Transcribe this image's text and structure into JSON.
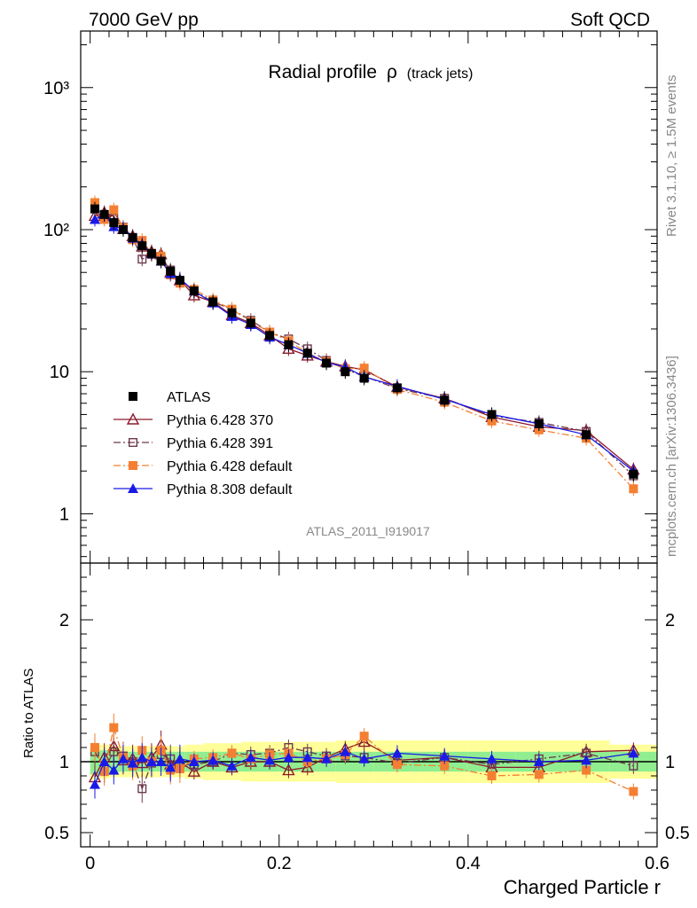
{
  "header": {
    "left": "7000 GeV pp",
    "right": "Soft QCD"
  },
  "side_text": {
    "rivet": "Rivet 3.1.10, ≥ 1.5M events",
    "mcplots": "mcplots.cern.ch [arXiv:1306.3436]"
  },
  "chart_data": [
    {
      "type": "line",
      "title": "Radial profile",
      "title_symbol": "ρ",
      "title_suffix": "(track jets)",
      "analysis_label": "ATLAS_2011_I919017",
      "y_scale": "log",
      "xlim": [
        -0.01,
        0.6
      ],
      "ylim": [
        0.45,
        2500
      ],
      "y_ticks_major": [
        "1",
        "10",
        "10²",
        "10³"
      ],
      "legend_position": "lower-left",
      "series": [
        {
          "name": "ATLAS",
          "color": "#000000",
          "marker": "square-filled",
          "x": [
            0.005,
            0.015,
            0.025,
            0.035,
            0.045,
            0.055,
            0.065,
            0.075,
            0.085,
            0.095,
            0.11,
            0.13,
            0.15,
            0.17,
            0.19,
            0.21,
            0.23,
            0.25,
            0.27,
            0.29,
            0.325,
            0.375,
            0.425,
            0.475,
            0.525,
            0.575
          ],
          "y": [
            140,
            128,
            112,
            100,
            88,
            77,
            68,
            60,
            51,
            44,
            37,
            31,
            26,
            22,
            18,
            15.5,
            13.5,
            11.5,
            10,
            9,
            7.7,
            6.3,
            5.0,
            4.3,
            3.6,
            1.9
          ]
        },
        {
          "name": "Pythia 6.428 370",
          "color": "#8b1a2b",
          "marker": "triangle-open",
          "line": "solid",
          "x": [
            0.005,
            0.015,
            0.025,
            0.035,
            0.045,
            0.055,
            0.065,
            0.075,
            0.085,
            0.095,
            0.11,
            0.13,
            0.15,
            0.17,
            0.19,
            0.21,
            0.23,
            0.25,
            0.27,
            0.29,
            0.325,
            0.375,
            0.425,
            0.475,
            0.525,
            0.575
          ],
          "y": [
            125,
            132,
            124,
            101,
            90,
            76,
            70,
            67,
            50,
            44,
            34.5,
            31,
            25,
            22,
            18,
            14.5,
            13,
            11.8,
            10.9,
            10.3,
            7.8,
            6.5,
            4.8,
            4.1,
            3.85,
            2.05
          ]
        },
        {
          "name": "Pythia 6.428 391",
          "color": "#6e3a4e",
          "marker": "square-open",
          "line": "dash-dot",
          "x": [
            0.005,
            0.015,
            0.025,
            0.035,
            0.045,
            0.055,
            0.065,
            0.075,
            0.085,
            0.095,
            0.11,
            0.13,
            0.15,
            0.17,
            0.19,
            0.21,
            0.23,
            0.25,
            0.27,
            0.29,
            0.325,
            0.375,
            0.425,
            0.475,
            0.525,
            0.575
          ],
          "y": [
            150,
            122,
            120,
            104,
            88,
            62,
            67,
            63,
            52,
            43,
            37,
            31,
            27.5,
            23,
            19,
            17,
            14.5,
            12,
            10.4,
            9.3,
            7.6,
            6.5,
            4.9,
            4.4,
            3.8,
            1.85
          ]
        },
        {
          "name": "Pythia 6.428 default",
          "color": "#f47f32",
          "marker": "square-filled",
          "line": "dash-dot",
          "x": [
            0.005,
            0.015,
            0.025,
            0.035,
            0.045,
            0.055,
            0.065,
            0.075,
            0.085,
            0.095,
            0.11,
            0.13,
            0.15,
            0.17,
            0.19,
            0.21,
            0.23,
            0.25,
            0.27,
            0.29,
            0.325,
            0.375,
            0.425,
            0.475,
            0.525,
            0.575
          ],
          "y": [
            155,
            118,
            138,
            103,
            85,
            84,
            68,
            65,
            48,
            42,
            38,
            32,
            27.5,
            22.5,
            19,
            16.5,
            13.5,
            11.8,
            10.5,
            10.6,
            7.5,
            6.1,
            4.5,
            3.9,
            3.4,
            1.5
          ]
        },
        {
          "name": "Pythia 8.308 default",
          "color": "#1a1ae6",
          "marker": "triangle-filled",
          "line": "solid",
          "x": [
            0.005,
            0.015,
            0.025,
            0.035,
            0.045,
            0.055,
            0.065,
            0.075,
            0.085,
            0.095,
            0.11,
            0.13,
            0.15,
            0.17,
            0.19,
            0.21,
            0.23,
            0.25,
            0.27,
            0.29,
            0.325,
            0.375,
            0.425,
            0.475,
            0.525,
            0.575
          ],
          "y": [
            118,
            128,
            105,
            102,
            87,
            79,
            68,
            60,
            49,
            45,
            37,
            30.5,
            24.5,
            21.5,
            17.5,
            15.5,
            13.5,
            11.6,
            10.8,
            9.2,
            7.9,
            6.4,
            5.0,
            4.3,
            3.6,
            2.0
          ]
        }
      ]
    },
    {
      "type": "line",
      "ylabel": "Ratio to ATLAS",
      "xlabel": "Charged Particle r",
      "xlim": [
        -0.01,
        0.6
      ],
      "ylim": [
        0.4,
        2.4
      ],
      "x_ticks": [
        "0",
        "0.2",
        "0.4",
        "0.6"
      ],
      "y_ticks": [
        "0.5",
        "1",
        "2"
      ],
      "bands": {
        "inner_color": "#90ee90",
        "outer_color": "#ffff99",
        "bin_edges": [
          0.0,
          0.01,
          0.02,
          0.03,
          0.04,
          0.05,
          0.06,
          0.07,
          0.08,
          0.09,
          0.1,
          0.12,
          0.14,
          0.16,
          0.18,
          0.2,
          0.22,
          0.24,
          0.26,
          0.28,
          0.3,
          0.35,
          0.4,
          0.45,
          0.5,
          0.55,
          0.6
        ],
        "inner_halfwidth": [
          0.09,
          0.08,
          0.08,
          0.07,
          0.07,
          0.07,
          0.07,
          0.07,
          0.07,
          0.07,
          0.07,
          0.07,
          0.07,
          0.07,
          0.07,
          0.07,
          0.07,
          0.07,
          0.07,
          0.07,
          0.07,
          0.07,
          0.07,
          0.07,
          0.07,
          0.07
        ],
        "outer_halfwidth": [
          0.13,
          0.12,
          0.11,
          0.11,
          0.11,
          0.11,
          0.11,
          0.11,
          0.11,
          0.11,
          0.12,
          0.13,
          0.13,
          0.14,
          0.14,
          0.14,
          0.14,
          0.14,
          0.15,
          0.15,
          0.15,
          0.15,
          0.15,
          0.15,
          0.15,
          0.12
        ]
      },
      "series": [
        {
          "name": "Pythia 6.428 370",
          "color": "#8b1a2b",
          "marker": "triangle-open",
          "line": "solid",
          "x": [
            0.005,
            0.015,
            0.025,
            0.035,
            0.045,
            0.055,
            0.065,
            0.075,
            0.085,
            0.095,
            0.11,
            0.13,
            0.15,
            0.17,
            0.19,
            0.21,
            0.23,
            0.25,
            0.27,
            0.29,
            0.325,
            0.375,
            0.425,
            0.475,
            0.525,
            0.575
          ],
          "y": [
            0.89,
            1.03,
            1.11,
            1.01,
            1.02,
            0.99,
            1.03,
            1.12,
            0.98,
            1.0,
            0.93,
            1.0,
            0.96,
            1.0,
            1.0,
            0.94,
            0.96,
            1.03,
            1.09,
            1.14,
            1.01,
            1.03,
            0.96,
            0.96,
            1.07,
            1.08
          ]
        },
        {
          "name": "Pythia 6.428 391",
          "color": "#6e3a4e",
          "marker": "square-open",
          "line": "dash-dot",
          "x": [
            0.005,
            0.015,
            0.025,
            0.035,
            0.045,
            0.055,
            0.065,
            0.075,
            0.085,
            0.095,
            0.11,
            0.13,
            0.15,
            0.17,
            0.19,
            0.21,
            0.23,
            0.25,
            0.27,
            0.29,
            0.325,
            0.375,
            0.425,
            0.475,
            0.525,
            0.575
          ],
          "y": [
            1.07,
            0.95,
            1.07,
            1.04,
            1.0,
            0.81,
            0.99,
            1.05,
            1.02,
            0.98,
            0.98,
            1.0,
            1.06,
            1.05,
            1.06,
            1.1,
            1.07,
            1.04,
            1.04,
            1.03,
            0.99,
            1.03,
            0.98,
            1.02,
            1.06,
            0.97
          ]
        },
        {
          "name": "Pythia 6.428 default",
          "color": "#f47f32",
          "marker": "square-filled",
          "line": "dash-dot",
          "x": [
            0.005,
            0.015,
            0.025,
            0.035,
            0.045,
            0.055,
            0.065,
            0.075,
            0.085,
            0.095,
            0.11,
            0.13,
            0.15,
            0.17,
            0.19,
            0.21,
            0.23,
            0.25,
            0.27,
            0.29,
            0.325,
            0.375,
            0.425,
            0.475,
            0.525,
            0.575
          ],
          "y": [
            1.1,
            0.93,
            1.24,
            1.03,
            0.97,
            1.08,
            1.0,
            1.08,
            0.94,
            0.95,
            1.02,
            1.03,
            1.06,
            1.02,
            1.05,
            1.06,
            1.0,
            1.02,
            1.05,
            1.18,
            0.98,
            0.97,
            0.9,
            0.91,
            0.94,
            0.79
          ]
        },
        {
          "name": "Pythia 8.308 default",
          "color": "#1a1ae6",
          "marker": "triangle-filled",
          "line": "solid",
          "x": [
            0.005,
            0.015,
            0.025,
            0.035,
            0.045,
            0.055,
            0.065,
            0.075,
            0.085,
            0.095,
            0.11,
            0.13,
            0.15,
            0.17,
            0.19,
            0.21,
            0.23,
            0.25,
            0.27,
            0.29,
            0.325,
            0.375,
            0.425,
            0.475,
            0.525,
            0.575
          ],
          "y": [
            0.84,
            1.0,
            0.94,
            1.02,
            0.99,
            1.03,
            1.0,
            1.0,
            0.96,
            1.02,
            1.0,
            1.01,
            0.97,
            1.03,
            1.01,
            1.03,
            1.03,
            1.02,
            1.07,
            1.02,
            1.06,
            1.04,
            1.02,
            1.0,
            1.01,
            1.06
          ]
        }
      ]
    }
  ]
}
